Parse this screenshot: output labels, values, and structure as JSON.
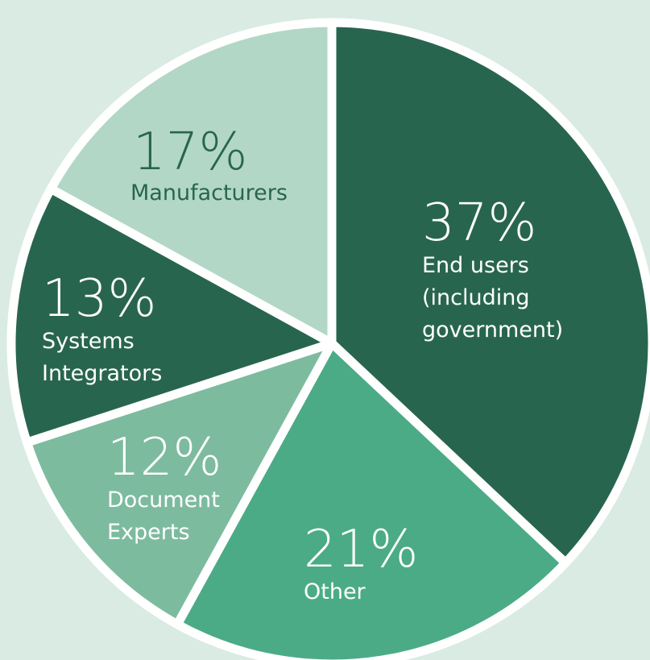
{
  "chart_data": {
    "type": "pie",
    "title": "",
    "slices": [
      {
        "percent": "37%",
        "value": 37,
        "label_lines": [
          "End users",
          "(including",
          "government)"
        ],
        "color": "#28654f",
        "text_color": "#ffffff"
      },
      {
        "percent": "21%",
        "value": 21,
        "label_lines": [
          "Other"
        ],
        "color": "#4bab87",
        "text_color": "#ffffff"
      },
      {
        "percent": "12%",
        "value": 12,
        "label_lines": [
          "Document",
          "Experts"
        ],
        "color": "#7dbb9f",
        "text_color": "#ffffff"
      },
      {
        "percent": "13%",
        "value": 13,
        "label_lines": [
          "Systems",
          "Integrators"
        ],
        "color": "#28654f",
        "text_color": "#ffffff"
      },
      {
        "percent": "17%",
        "value": 17,
        "label_lines": [
          "Manufacturers"
        ],
        "color": "#b3d7c6",
        "text_color": "#28654f"
      }
    ]
  }
}
